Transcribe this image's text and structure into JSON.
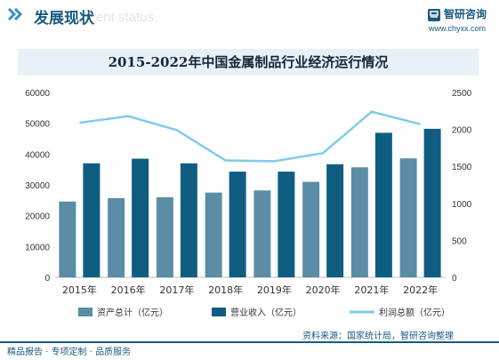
{
  "header": {
    "title": "发展现状",
    "ghost_text": "ent status",
    "brand_name": "智研咨询",
    "brand_url": "www.chyxx.com"
  },
  "chart_data": {
    "type": "bar",
    "title": "2015-2022年中国金属制品行业经济运行情况",
    "categories": [
      "2015年",
      "2016年",
      "2017年",
      "2018年",
      "2019年",
      "2020年",
      "2021年",
      "2022年"
    ],
    "series": [
      {
        "name": "资产总计（亿元）",
        "type": "bar",
        "axis": "left",
        "color": "#5b8ea6",
        "values": [
          24600,
          25700,
          26000,
          27500,
          28200,
          31000,
          35700,
          38600
        ]
      },
      {
        "name": "营业收入（亿元）",
        "type": "bar",
        "axis": "left",
        "color": "#0f5e82",
        "values": [
          37000,
          38500,
          37000,
          34300,
          34300,
          36700,
          46900,
          48200
        ]
      },
      {
        "name": "利润总额（亿元）",
        "type": "line",
        "axis": "right",
        "color": "#7fcbe8",
        "values": [
          2090,
          2180,
          1990,
          1580,
          1570,
          1680,
          2240,
          2070
        ]
      }
    ],
    "y_left": {
      "min": 0,
      "max": 60000,
      "ticks": [
        0,
        10000,
        20000,
        30000,
        40000,
        50000,
        60000
      ]
    },
    "y_right": {
      "min": 0,
      "max": 2500,
      "ticks": [
        0,
        500,
        1000,
        1500,
        2000,
        2500
      ]
    },
    "legend_position": "bottom",
    "grid": false
  },
  "footer": {
    "left": "精品报告 · 专项定制 · 品质服务",
    "source": "资料来源：国家统计局，智研咨询整理"
  }
}
